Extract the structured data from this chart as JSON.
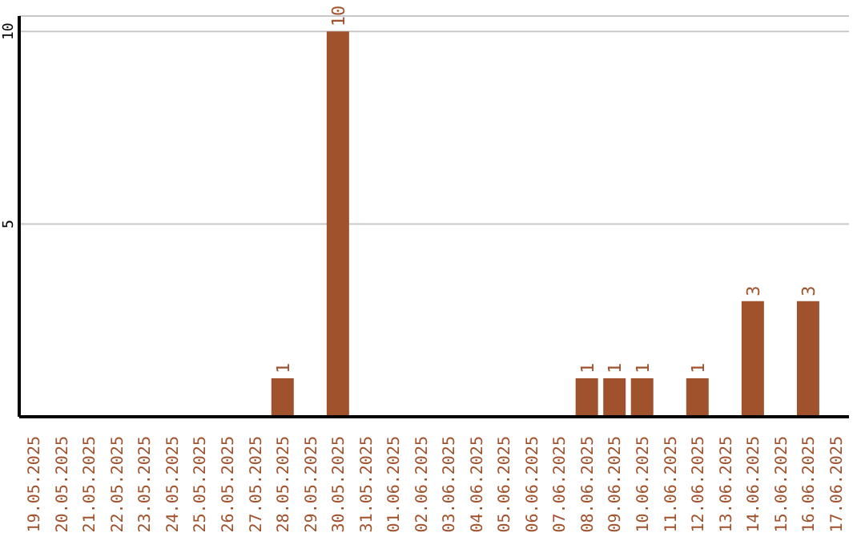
{
  "chart_data": {
    "type": "bar",
    "categories": [
      "19.05.2025",
      "20.05.2025",
      "21.05.2025",
      "22.05.2025",
      "23.05.2025",
      "24.05.2025",
      "25.05.2025",
      "26.05.2025",
      "27.05.2025",
      "28.05.2025",
      "29.05.2025",
      "30.05.2025",
      "31.05.2025",
      "01.06.2025",
      "02.06.2025",
      "03.06.2025",
      "04.06.2025",
      "05.06.2025",
      "06.06.2025",
      "07.06.2025",
      "08.06.2025",
      "09.06.2025",
      "10.06.2025",
      "11.06.2025",
      "12.06.2025",
      "13.06.2025",
      "14.06.2025",
      "15.06.2025",
      "16.06.2025",
      "17.06.2025"
    ],
    "values": [
      0,
      0,
      0,
      0,
      0,
      0,
      0,
      0,
      0,
      1,
      0,
      10,
      0,
      0,
      0,
      0,
      0,
      0,
      0,
      0,
      1,
      1,
      1,
      0,
      1,
      0,
      3,
      0,
      3,
      0
    ],
    "value_labels": [
      null,
      null,
      null,
      null,
      null,
      null,
      null,
      null,
      null,
      "1",
      null,
      "10",
      null,
      null,
      null,
      null,
      null,
      null,
      null,
      null,
      "1",
      "1",
      "1",
      null,
      "1",
      null,
      "3",
      null,
      "3",
      null
    ],
    "color": "#a0522d",
    "ylim": [
      0,
      10.4
    ],
    "yticks": [
      5,
      10
    ],
    "grid": "y",
    "legend": false
  }
}
